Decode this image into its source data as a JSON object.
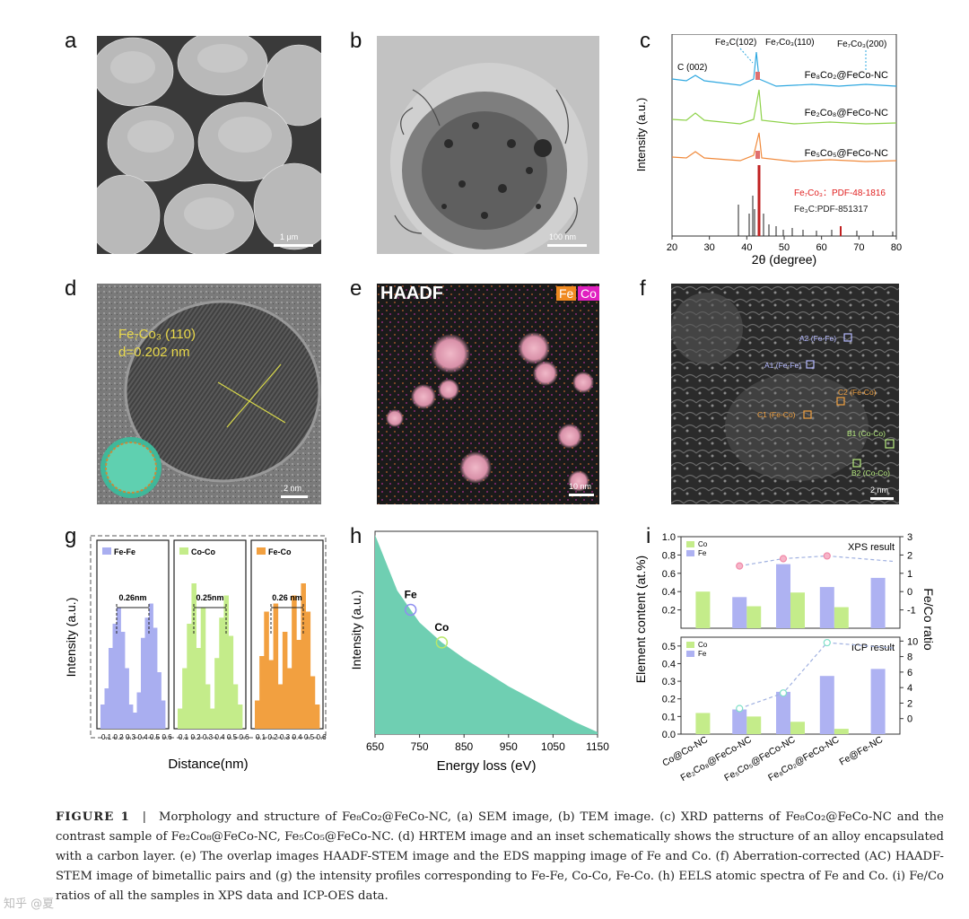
{
  "panels": {
    "a": {
      "letter": "a",
      "scale": "1 μm"
    },
    "b": {
      "letter": "b",
      "scale": "100 nm"
    },
    "c": {
      "letter": "c"
    },
    "d": {
      "letter": "d",
      "label1": "Fe₇Co₃ (110)",
      "label2": "d=0.202 nm",
      "scale": "2 nm"
    },
    "e": {
      "letter": "e",
      "title": "HAADF",
      "fe": "Fe",
      "co": "Co",
      "scale": "10 nm"
    },
    "f": {
      "letter": "f",
      "scale": "2 nm",
      "boxes": [
        "A2 (Fe-Fe)",
        "A1 (Fe-Fe)",
        "C2 (Fe-Co)",
        "C1 (Fe-Co)",
        "B1 (Co-Co)",
        "B2 (Co-Co)"
      ]
    },
    "g": {
      "letter": "g"
    },
    "h": {
      "letter": "h"
    },
    "i": {
      "letter": "i"
    }
  },
  "chart_data": [
    {
      "panel": "c",
      "type": "line",
      "xlabel": "2θ (degree)",
      "ylabel": "Intensity (a.u.)",
      "xlim": [
        20,
        80
      ],
      "xticks": [
        20,
        30,
        40,
        50,
        60,
        70,
        80
      ],
      "series": [
        {
          "name": "Fe₈Co₂@FeCo-NC",
          "color": "#2fa8e0"
        },
        {
          "name": "Fe₂Co₈@FeCo-NC",
          "color": "#8ed24a"
        },
        {
          "name": "Fe₅Co₅@FeCo-NC",
          "color": "#f08a3c"
        }
      ],
      "annotations": [
        "C (002)",
        "Fe₃C(102)",
        "Fe₇Co₃(110)",
        "Fe₇Co₃(200)"
      ],
      "references": [
        {
          "name": "Fe₇Co₃：PDF-48-1816",
          "color": "#e02020"
        },
        {
          "name": "Fe₃C:PDF-851317",
          "color": "#222222"
        }
      ]
    },
    {
      "panel": "g",
      "type": "bar",
      "xlabel": "Distance(nm)",
      "ylabel": "Intensity (a.u.)",
      "xticks": [
        "0.1",
        "0.2",
        "0.3",
        "0.4",
        "0.5",
        "0.6"
      ],
      "series": [
        {
          "name": "Fe-Fe",
          "color": "#a9aef0",
          "distance": "0.26nm",
          "values": [
            12,
            20,
            40,
            52,
            60,
            48,
            30,
            12,
            8,
            18,
            45,
            55,
            62,
            50,
            28,
            14
          ]
        },
        {
          "name": "Co-Co",
          "color": "#c4ec8a",
          "distance": "0.25nm",
          "values": [
            10,
            30,
            52,
            72,
            40,
            60,
            22,
            10,
            35,
            55,
            66,
            46,
            22,
            12
          ]
        },
        {
          "name": "Fe-Co",
          "color": "#f2a040",
          "distance": "0.26 nm",
          "values": [
            14,
            36,
            58,
            34,
            62,
            22,
            48,
            30,
            66,
            44,
            72,
            58,
            26,
            12
          ]
        }
      ]
    },
    {
      "panel": "h",
      "type": "area",
      "xlabel": "Energy loss (eV)",
      "ylabel": "Intensity (a.u.)",
      "xlim": [
        650,
        1150
      ],
      "xticks": [
        650,
        750,
        850,
        950,
        1050,
        1150
      ],
      "color": "#6fcfb2",
      "x": [
        650,
        700,
        750,
        800,
        850,
        900,
        950,
        1000,
        1050,
        1100,
        1150
      ],
      "y": [
        1.0,
        0.72,
        0.56,
        0.46,
        0.38,
        0.31,
        0.24,
        0.18,
        0.12,
        0.06,
        0.01
      ],
      "markers": [
        {
          "label": "Fe",
          "x": 730,
          "color": "#8e8ef0"
        },
        {
          "label": "Co",
          "x": 800,
          "color": "#b8e86a"
        }
      ]
    },
    {
      "panel": "i",
      "type": "bar",
      "ylabel": "Element content (at.%)",
      "y2label": "Fe/Co ratio",
      "categories": [
        "Co@Co-NC",
        "Fe₂Co₈@FeCo-NC",
        "Fe₅Co₅@FeCo-NC",
        "Fe₈Co₂@FeCo-NC",
        "Fe@Fe-NC"
      ],
      "top": {
        "title": "XPS result",
        "ylim": [
          0,
          1.0
        ],
        "yticks": [
          "0.2",
          "0.4",
          "0.6",
          "0.8",
          "1.0"
        ],
        "y2ticks": [
          "-1",
          "0",
          "1",
          "2",
          "3"
        ],
        "series": [
          {
            "name": "Co",
            "color": "#c4ec8a",
            "values": [
              0.4,
              0.24,
              0.39,
              0.23,
              null
            ]
          },
          {
            "name": "Fe",
            "color": "#aeb2f2",
            "values": [
              null,
              0.34,
              0.7,
              0.45,
              0.55
            ]
          }
        ],
        "ratio": [
          null,
          1.4,
          1.8,
          1.95,
          null
        ]
      },
      "bottom": {
        "title": "ICP result",
        "ylim": [
          0,
          0.55
        ],
        "yticks": [
          "0.0",
          "0.1",
          "0.2",
          "0.3",
          "0.4",
          "0.5"
        ],
        "y2ticks": [
          "0",
          "2",
          "4",
          "6",
          "8",
          "10"
        ],
        "series": [
          {
            "name": "Co",
            "color": "#c4ec8a",
            "values": [
              0.12,
              0.1,
              0.07,
              0.03,
              null
            ]
          },
          {
            "name": "Fe",
            "color": "#aeb2f2",
            "values": [
              null,
              0.14,
              0.24,
              0.33,
              0.37
            ]
          }
        ],
        "ratio": [
          null,
          1.3,
          3.3,
          9.8,
          null
        ]
      }
    }
  ],
  "caption": {
    "figure": "FIGURE 1",
    "sep": "|",
    "text": "Morphology and structure of Fe₈Co₂@FeCo-NC, (a) SEM image, (b) TEM image. (c) XRD patterns of Fe₈Co₂@FeCo-NC and the contrast sample of Fe₂Co₈@FeCo-NC, Fe₅Co₅@FeCo-NC. (d) HRTEM image and an inset schematically shows the structure of an alloy encapsulated with a carbon layer. (e) The overlap images HAADF-STEM image and the EDS mapping image of Fe and Co. (f) Aberration-corrected (AC) HAADF-STEM image of bimetallic pairs and (g) the intensity profiles corresponding to Fe-Fe, Co-Co, Fe-Co. (h) EELS atomic spectra of Fe and Co. (i) Fe/Co ratios of all the samples in XPS data and ICP-OES data."
  },
  "watermark": "知乎 @夏"
}
